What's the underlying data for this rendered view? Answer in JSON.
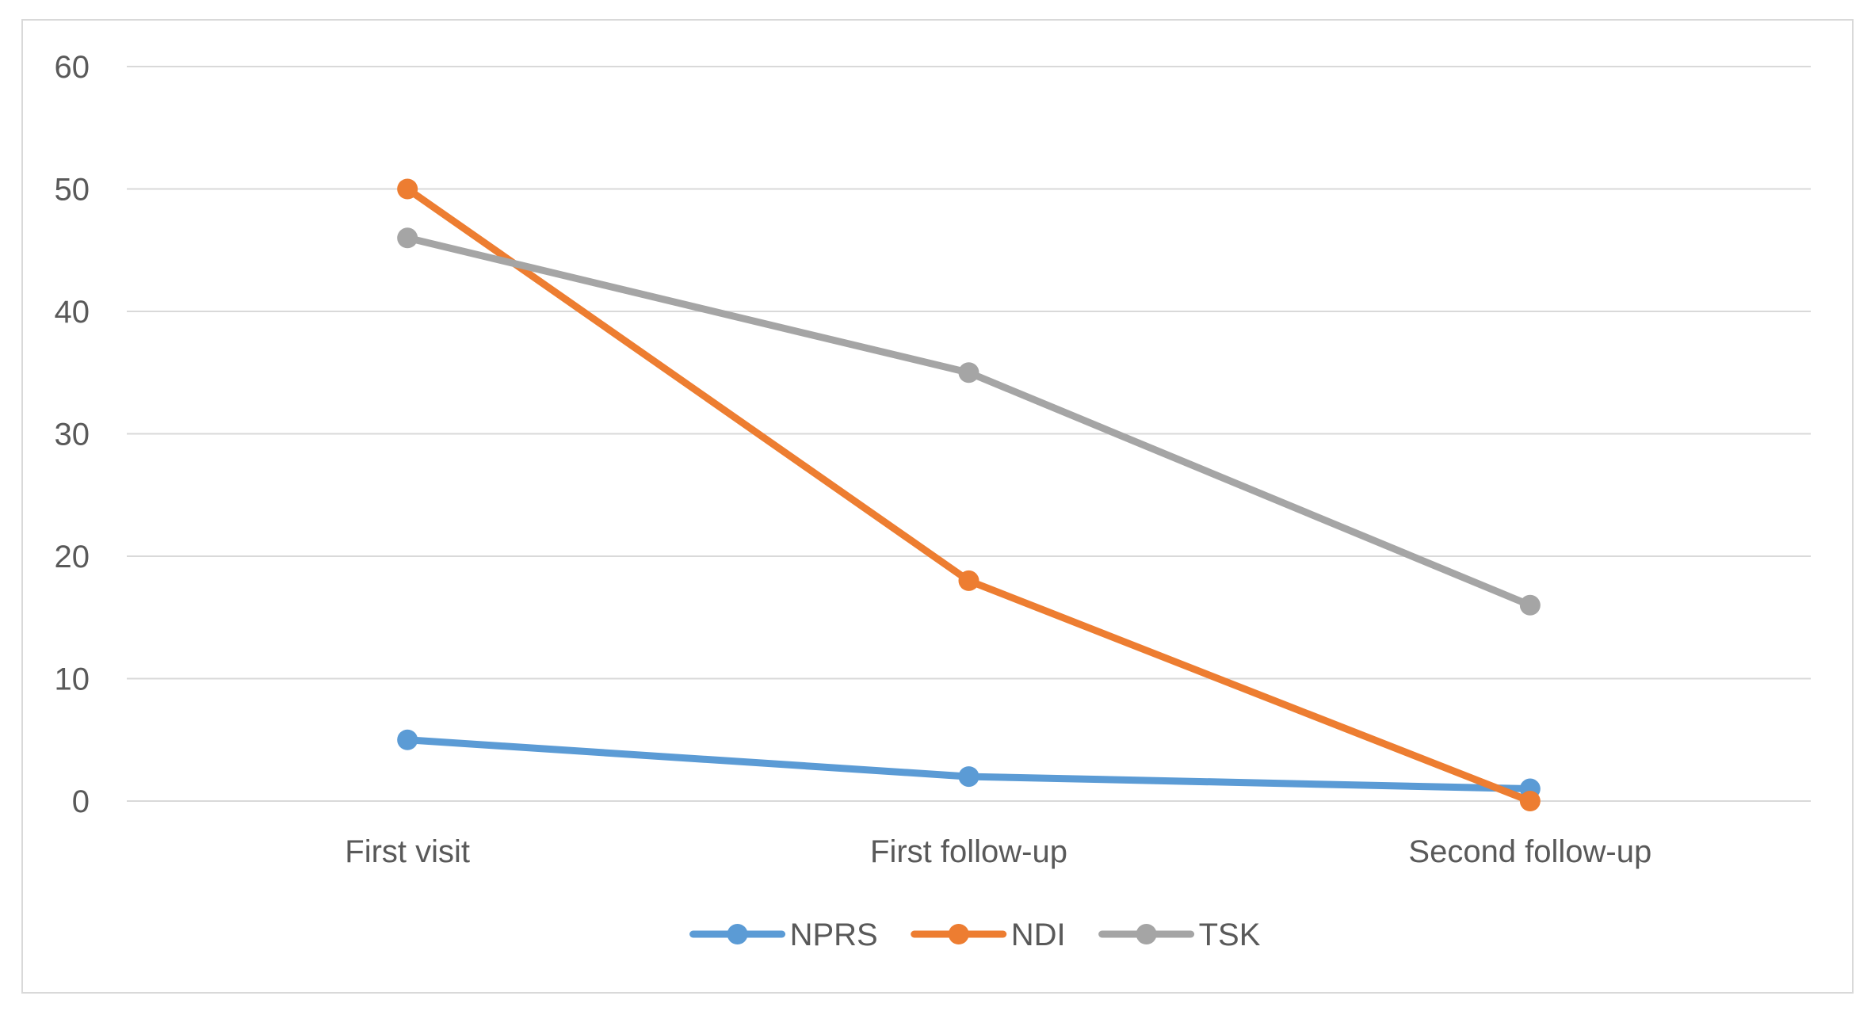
{
  "chart_data": {
    "type": "line",
    "title": "",
    "xlabel": "",
    "ylabel": "",
    "categories": [
      "First visit",
      "First follow-up",
      "Second follow-up"
    ],
    "ylim": [
      0,
      60
    ],
    "yticks": [
      "0",
      "10",
      "20",
      "30",
      "40",
      "50",
      "60"
    ],
    "grid": true,
    "legend_position": "bottom",
    "series": [
      {
        "name": "NPRS",
        "values": [
          5,
          2,
          1
        ],
        "color": "#5b9bd5"
      },
      {
        "name": "NDI",
        "values": [
          50,
          18,
          0
        ],
        "color": "#ed7d31"
      },
      {
        "name": "TSK",
        "values": [
          46,
          35,
          16
        ],
        "color": "#a5a5a5"
      }
    ]
  }
}
